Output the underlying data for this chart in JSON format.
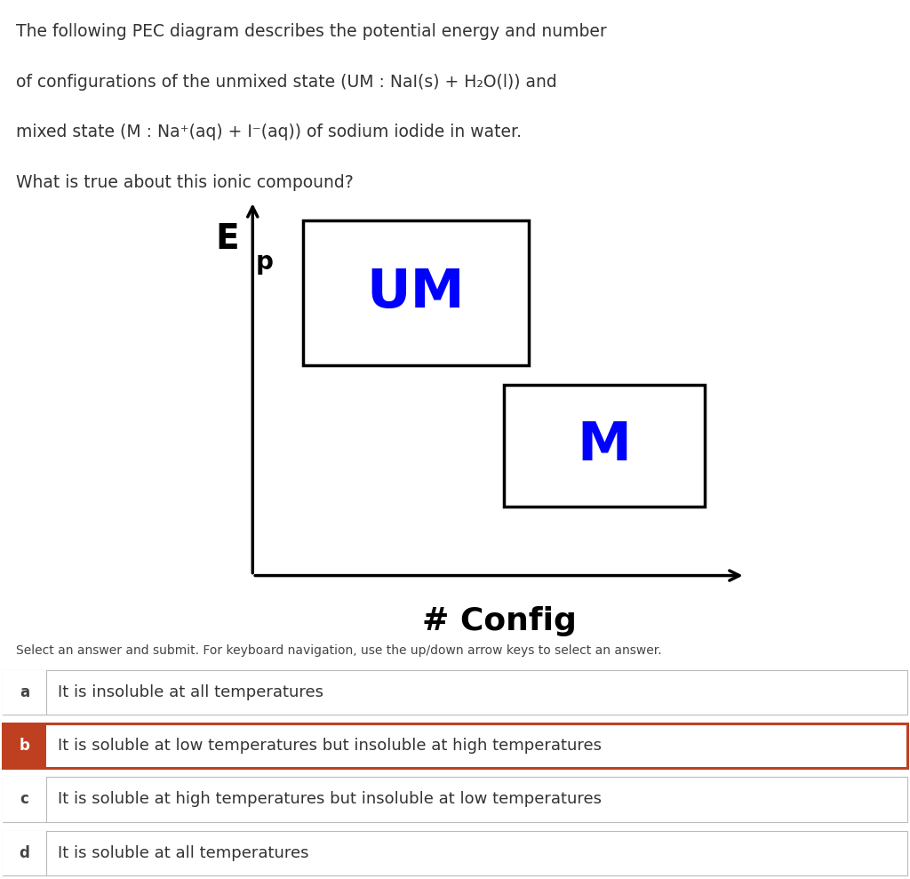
{
  "title_lines": [
    "The following PEC diagram describes the potential energy and number",
    "of configurations of the unmixed state (UM : NaI(s) + H₂O(l)) and",
    "mixed state (M : Na⁺(aq) + I⁻(aq)) of sodium iodide in water.",
    "What is true about this ionic compound?"
  ],
  "xlabel": "# Config",
  "um_label": "UM",
  "m_label": "M",
  "label_color": "#0000ff",
  "background_color": "#ffffff",
  "select_text": "Select an answer and submit. For keyboard navigation, use the up/down arrow keys to select an answer.",
  "answers": [
    {
      "letter": "a",
      "text": "It is insoluble at all temperatures",
      "selected": false
    },
    {
      "letter": "b",
      "text": "It is soluble at low temperatures but insoluble at high temperatures",
      "selected": true
    },
    {
      "letter": "c",
      "text": "It is soluble at high temperatures but insoluble at low temperatures",
      "selected": false
    },
    {
      "letter": "d",
      "text": "It is soluble at all temperatures",
      "selected": false
    }
  ],
  "selected_bg": "#bf4020",
  "selected_border": "#bf4020",
  "unselected_border": "#bbbbbb",
  "letter_color_selected": "#ffffff",
  "letter_color_unselected": "#444444",
  "text_color": "#333333",
  "header_fontsize": 13.5,
  "answer_fontsize": 13,
  "select_fontsize": 10
}
